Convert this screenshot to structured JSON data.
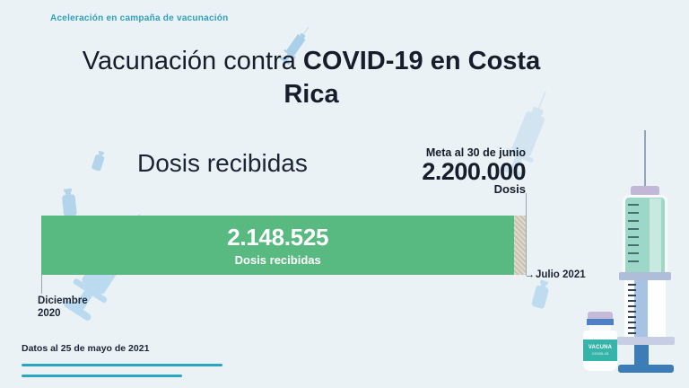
{
  "palette": {
    "background": "#eaf2f6",
    "accent_teal": "#2f9fba",
    "accent_line_teal": "#2aa6c2",
    "text_dark": "#1c2534",
    "bar_green": "#58b981",
    "remainder_beige": "#c9c1b1",
    "decoration_blue": "#b3d4ea"
  },
  "header": {
    "kicker": "Aceleración en campaña de vacunación",
    "title_regular": "Vacunación contra",
    "title_bold": "COVID-19 en Costa Rica"
  },
  "chart": {
    "heading": "Dosis recibidas",
    "goal_title": "Meta al 30 de junio",
    "goal_value": "2.200.000",
    "goal_unit": "Dosis",
    "bar_value": "2.148.525",
    "bar_label": "Dosis recibidas",
    "start_label_line1": "Diciembre",
    "start_label_line2": "2020",
    "arrow": "→",
    "end_label": "Julio 2021"
  },
  "footer": {
    "note": "Datos al 25 de mayo de 2021"
  },
  "illustration": {
    "vial_label": "VACUNA",
    "vial_sublabel": "COVID-19"
  },
  "chart_data": {
    "type": "bar",
    "title": "Dosis recibidas",
    "categories": [
      "Dosis recibidas"
    ],
    "values": [
      2148525
    ],
    "value_labels": [
      "2.148.525"
    ],
    "goal": 2200000,
    "goal_label": "Meta al 30 de junio",
    "goal_display": "2.200.000",
    "unit": "Dosis",
    "progress_fraction": 0.9766,
    "x_range": [
      "Diciembre 2020",
      "Julio 2021"
    ],
    "annotations": [
      "Datos al 25 de mayo de 2021",
      "Aceleración en campaña de vacunación"
    ],
    "bar_color": "#58b981",
    "remainder_style": "hatched-beige",
    "legend": "none",
    "grid": false
  }
}
